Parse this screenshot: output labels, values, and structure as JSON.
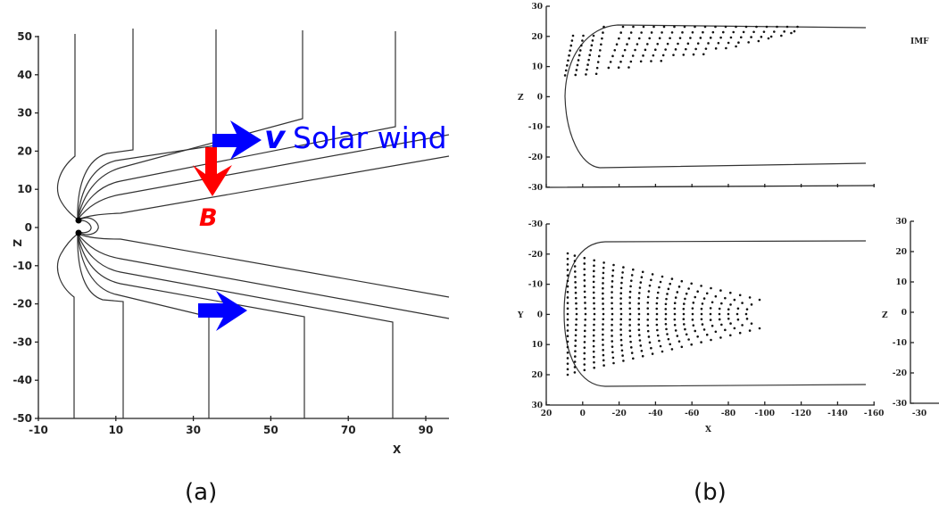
{
  "panel_a": {
    "caption": "(a)",
    "x_label": "X",
    "y_label": "Z",
    "x_ticks": [
      "-10",
      "10",
      "30",
      "50",
      "70",
      "90"
    ],
    "y_ticks": [
      "50",
      "40",
      "30",
      "20",
      "10",
      "0",
      "-10",
      "-20",
      "-30",
      "-40",
      "-50"
    ],
    "velocity_symbol": "v",
    "solar_wind_label": "Solar wind",
    "field_symbol": "B",
    "colors": {
      "velocity_arrow": "#0000ff",
      "field_arrow": "#ff0000",
      "field_lines": "#333333"
    }
  },
  "panel_b": {
    "caption": "(b)",
    "imf_label": "IMF",
    "top_plot": {
      "y_label": "Z",
      "y_ticks": [
        "30",
        "20",
        "10",
        "0",
        "-10",
        "-20",
        "-30"
      ]
    },
    "bottom_plot": {
      "y_label": "Y",
      "y_ticks": [
        "-30",
        "-20",
        "-10",
        "0",
        "10",
        "20",
        "30"
      ],
      "x_label": "X",
      "x_ticks": [
        "20",
        "0",
        "-20",
        "-40",
        "-60",
        "-80",
        "-100",
        "-120",
        "-140",
        "-160"
      ]
    },
    "side_plot": {
      "y_label": "Z",
      "y_ticks": [
        "30",
        "20",
        "10",
        "0",
        "-10",
        "-20",
        "-30"
      ],
      "x_ticks": [
        "-30"
      ]
    }
  }
}
